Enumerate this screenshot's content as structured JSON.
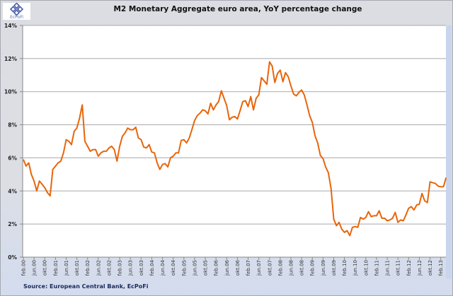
{
  "logo_text": "EcPoFi",
  "chart_data": {
    "type": "line",
    "title": "M2 Monetary Aggregate euro area, YoY percentage change",
    "source": "Source: European  Central Bank, EcPoFi",
    "xlabel": "",
    "ylabel": "",
    "x_start": "feb.00",
    "x_frequency": "monthly",
    "ylim": [
      0,
      14
    ],
    "yticks": [
      "0%",
      "2%",
      "4%",
      "6%",
      "8%",
      "10%",
      "12%",
      "14%"
    ],
    "xticks": [
      "feb.00",
      "jun.00",
      "okt.00",
      "feb.01",
      "jun.01",
      "okt.01",
      "feb.02",
      "jun.02",
      "okt.02",
      "feb.03",
      "jun.03",
      "okt.03",
      "feb.04",
      "jun.04",
      "okt.04",
      "feb.05",
      "jun.05",
      "okt.05",
      "feb.06",
      "jun.06",
      "okt.06",
      "feb.07",
      "jun.07",
      "okt.07",
      "feb.08",
      "jun.08",
      "okt.08",
      "feb.09",
      "jun.09",
      "okt.09",
      "feb.10",
      "jun.10",
      "okt.10",
      "feb.11",
      "jun.11",
      "okt.11",
      "feb.12",
      "jun.12",
      "okt.12",
      "feb.13"
    ],
    "grid": true,
    "legend": "none",
    "series": [
      {
        "name": "M2 YoY %",
        "color": "#e8650a",
        "values": [
          5.9,
          5.5,
          5.7,
          5.0,
          4.6,
          4.0,
          4.6,
          4.4,
          4.2,
          3.9,
          3.7,
          5.3,
          5.5,
          5.7,
          5.8,
          6.3,
          7.1,
          7.0,
          6.8,
          7.6,
          7.8,
          8.4,
          9.2,
          7.0,
          6.7,
          6.4,
          6.5,
          6.5,
          6.1,
          6.3,
          6.4,
          6.4,
          6.6,
          6.7,
          6.5,
          5.8,
          6.7,
          7.3,
          7.5,
          7.8,
          7.7,
          7.7,
          7.85,
          7.2,
          7.1,
          6.65,
          6.6,
          6.8,
          6.35,
          6.3,
          5.7,
          5.3,
          5.6,
          5.65,
          5.45,
          6.0,
          6.1,
          6.3,
          6.3,
          7.05,
          7.1,
          6.9,
          7.2,
          7.7,
          8.25,
          8.55,
          8.7,
          8.9,
          8.85,
          8.65,
          9.3,
          8.9,
          9.2,
          9.4,
          10.05,
          9.6,
          9.15,
          8.3,
          8.45,
          8.5,
          8.35,
          8.85,
          9.4,
          9.45,
          9.1,
          9.7,
          8.9,
          9.6,
          9.8,
          10.85,
          10.65,
          10.45,
          11.8,
          11.55,
          10.55,
          11.1,
          11.3,
          10.6,
          11.15,
          10.9,
          10.35,
          9.85,
          9.75,
          9.95,
          10.1,
          9.8,
          9.2,
          8.55,
          8.15,
          7.35,
          6.9,
          6.15,
          5.95,
          5.45,
          5.1,
          4.15,
          2.3,
          1.9,
          2.1,
          1.7,
          1.5,
          1.6,
          1.3,
          1.8,
          1.85,
          1.8,
          2.4,
          2.3,
          2.4,
          2.75,
          2.45,
          2.5,
          2.5,
          2.8,
          2.35,
          2.35,
          2.2,
          2.25,
          2.35,
          2.7,
          2.1,
          2.25,
          2.2,
          2.55,
          2.95,
          3.05,
          2.85,
          3.15,
          3.2,
          3.85,
          3.4,
          3.3,
          4.55,
          4.5,
          4.45,
          4.3,
          4.25,
          4.25,
          4.8
        ]
      }
    ]
  }
}
